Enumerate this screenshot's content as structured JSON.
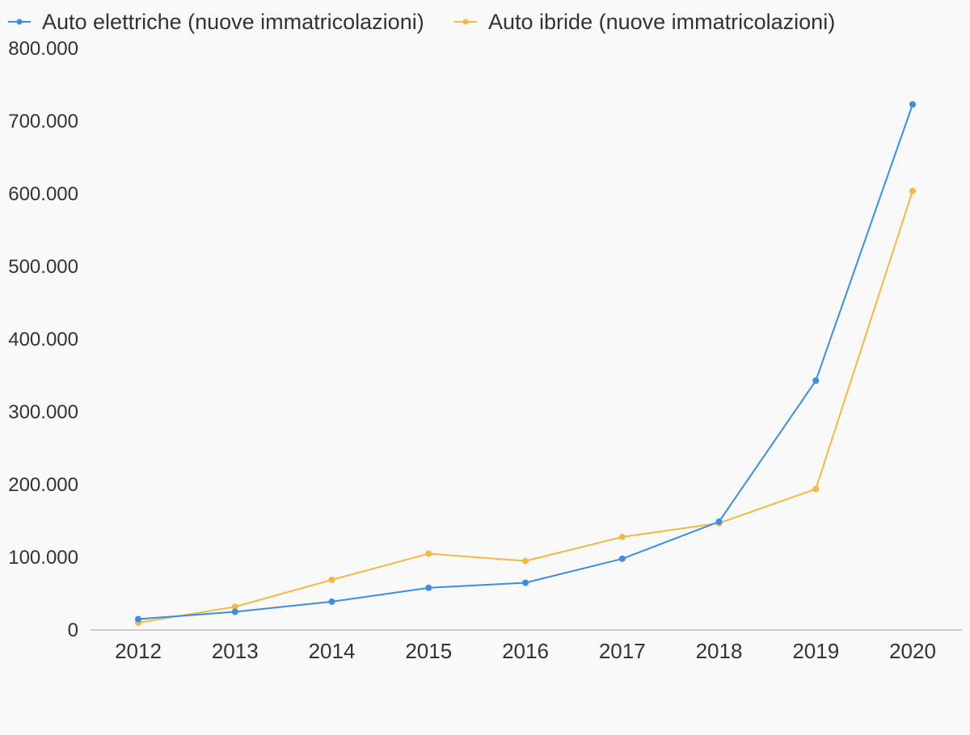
{
  "chart_data": {
    "type": "line",
    "categories": [
      "2012",
      "2013",
      "2014",
      "2015",
      "2016",
      "2017",
      "2018",
      "2019",
      "2020"
    ],
    "series": [
      {
        "name": "Auto elettriche (nuove immatricolazioni)",
        "color": "#3a8ee6",
        "values": [
          15000,
          25000,
          39000,
          58000,
          65000,
          98000,
          149000,
          343000,
          723000
        ]
      },
      {
        "name": "Auto ibride (nuove immatricolazioni)",
        "color": "#f5b941",
        "values": [
          10000,
          32000,
          69000,
          105000,
          95000,
          128000,
          147000,
          194000,
          604000
        ]
      }
    ],
    "ylim": [
      0,
      800000
    ],
    "y_ticks": [
      0,
      100000,
      200000,
      300000,
      400000,
      500000,
      600000,
      700000,
      800000
    ],
    "y_tick_labels": [
      "0",
      "100.000",
      "200.000",
      "300.000",
      "400.000",
      "500.000",
      "600.000",
      "700.000",
      "800.000"
    ],
    "title": "",
    "xlabel": "",
    "ylabel": "",
    "legend_position": "top-left",
    "grid": false,
    "axis_color": "#cccccc"
  }
}
